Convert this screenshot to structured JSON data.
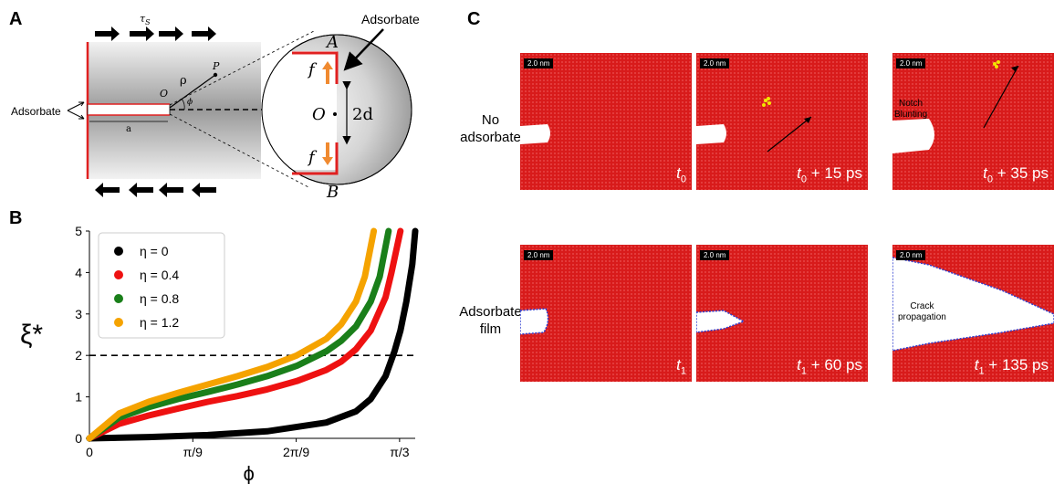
{
  "panels": {
    "a": "A",
    "b": "B",
    "c": "C"
  },
  "panel_a": {
    "tau_label": "τ",
    "tau_sub": "S",
    "adsorbate_left": "Adsorbate",
    "adsorbate_top": "Adsorbate",
    "rho": "ρ",
    "point_p": "P",
    "origin": "O",
    "phi": "ϕ",
    "crack_length": "a",
    "zoom_a": "A",
    "zoom_b": "B",
    "zoom_o": "O",
    "zoom_2d": "2d",
    "force": "f"
  },
  "chart_data": {
    "type": "line",
    "xlabel": "ϕ",
    "ylabel": "ξ*",
    "xlim": [
      0,
      1.1
    ],
    "ylim": [
      0,
      5
    ],
    "xticks": [
      "0",
      "π/9",
      "2π/9",
      "π/3"
    ],
    "yticks": [
      "0",
      "1",
      "2",
      "3",
      "4",
      "5"
    ],
    "reference_line": 2,
    "legend_position": "top-left",
    "series": [
      {
        "name": "η = 0",
        "color": "#000000",
        "x": [
          0,
          0.2,
          0.4,
          0.6,
          0.8,
          0.9,
          0.95,
          1.0,
          1.03,
          1.05,
          1.07,
          1.09,
          1.1
        ],
        "y": [
          0,
          0.03,
          0.08,
          0.17,
          0.38,
          0.65,
          0.95,
          1.5,
          2.1,
          2.6,
          3.3,
          4.2,
          5.0
        ]
      },
      {
        "name": "η = 0.4",
        "color": "#ee1111",
        "x": [
          0,
          0.1,
          0.2,
          0.3,
          0.4,
          0.5,
          0.6,
          0.7,
          0.8,
          0.85,
          0.9,
          0.95,
          1.0,
          1.02,
          1.05
        ],
        "y": [
          0,
          0.35,
          0.55,
          0.72,
          0.88,
          1.02,
          1.18,
          1.38,
          1.65,
          1.85,
          2.15,
          2.6,
          3.4,
          4.0,
          5.0
        ]
      },
      {
        "name": "η = 0.8",
        "color": "#1a7f1a",
        "x": [
          0,
          0.1,
          0.2,
          0.3,
          0.4,
          0.5,
          0.6,
          0.7,
          0.8,
          0.85,
          0.9,
          0.95,
          0.98,
          1.01
        ],
        "y": [
          0,
          0.5,
          0.75,
          0.95,
          1.12,
          1.3,
          1.5,
          1.75,
          2.1,
          2.35,
          2.7,
          3.3,
          3.9,
          5.0
        ]
      },
      {
        "name": "η = 1.2",
        "color": "#f5a300",
        "x": [
          0,
          0.1,
          0.2,
          0.3,
          0.4,
          0.5,
          0.6,
          0.7,
          0.8,
          0.85,
          0.9,
          0.93,
          0.96
        ],
        "y": [
          0,
          0.6,
          0.88,
          1.1,
          1.3,
          1.5,
          1.72,
          2.0,
          2.4,
          2.75,
          3.3,
          3.9,
          5.0
        ]
      }
    ]
  },
  "panel_c": {
    "row1_label": [
      "No",
      "adsorbate"
    ],
    "row2_label": [
      "Adsorbate",
      "film"
    ],
    "frames": [
      {
        "scale": "2.0 nm",
        "time": "t",
        "time_sub": "0",
        "time_suffix": ""
      },
      {
        "scale": "2.0 nm",
        "time": "t",
        "time_sub": "0",
        "time_suffix": " + 15 ps"
      },
      {
        "scale": "2.0 nm",
        "time": "t",
        "time_sub": "0",
        "time_suffix": " + 35 ps",
        "note": [
          "Notch",
          "Blunting"
        ]
      },
      {
        "scale": "2.0 nm",
        "time": "t",
        "time_sub": "1",
        "time_suffix": ""
      },
      {
        "scale": "2.0 nm",
        "time": "t",
        "time_sub": "1",
        "time_suffix": " + 60 ps"
      },
      {
        "scale": "2.0 nm",
        "time": "t",
        "time_sub": "1",
        "time_suffix": " + 135 ps",
        "note": [
          "Crack",
          "propagation"
        ]
      }
    ],
    "colors": {
      "lattice": "#d81b1b",
      "adsorbate": "#2f3fd0",
      "adatom": "#f2e600"
    }
  }
}
